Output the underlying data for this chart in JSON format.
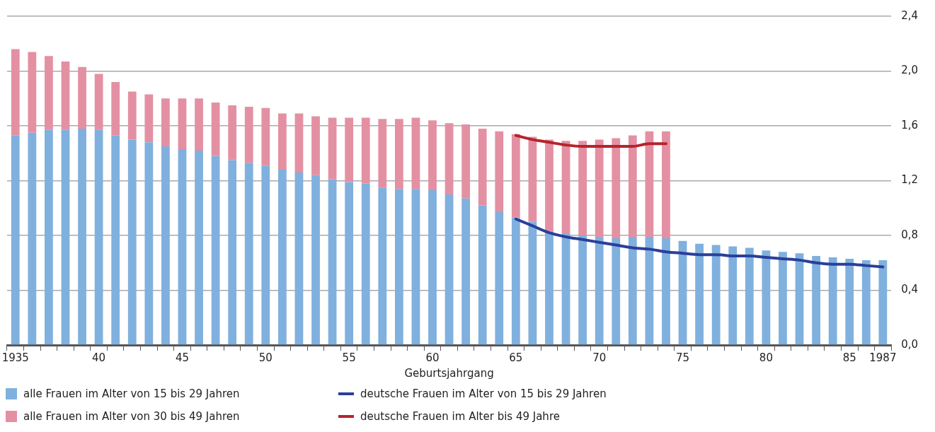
{
  "chart_data": {
    "type": "bar",
    "stacked": true,
    "xlabel": "Geburtsjahrgang",
    "categories": [
      "1935",
      null,
      null,
      null,
      null,
      "40",
      null,
      null,
      null,
      null,
      "45",
      null,
      null,
      null,
      null,
      "50",
      null,
      null,
      null,
      null,
      "55",
      null,
      null,
      null,
      null,
      "60",
      null,
      null,
      null,
      null,
      "65",
      null,
      null,
      null,
      null,
      "70",
      null,
      null,
      null,
      null,
      "75",
      null,
      null,
      null,
      null,
      "80",
      null,
      null,
      null,
      null,
      "85",
      null,
      "1987"
    ],
    "series": [
      {
        "name": "alle Frauen im Alter von 15 bis 29 Jahren",
        "color": "#80b0de",
        "values": [
          1.53,
          1.55,
          1.57,
          1.57,
          1.58,
          1.57,
          1.53,
          1.5,
          1.48,
          1.45,
          1.43,
          1.42,
          1.38,
          1.35,
          1.33,
          1.31,
          1.28,
          1.26,
          1.24,
          1.21,
          1.19,
          1.18,
          1.15,
          1.14,
          1.14,
          1.13,
          1.1,
          1.07,
          1.02,
          0.97,
          0.93,
          0.9,
          0.83,
          0.81,
          0.8,
          0.79,
          0.78,
          0.79,
          0.79,
          0.78,
          0.76,
          0.74,
          0.73,
          0.72,
          0.71,
          0.69,
          0.68,
          0.67,
          0.65,
          0.64,
          0.63,
          0.62,
          0.62
        ]
      },
      {
        "name": "deutsche Frauen im Alter von 15 bis 29 Jahren",
        "type": "line",
        "color": "#2a3f9a",
        "values": [
          null,
          null,
          null,
          null,
          null,
          null,
          null,
          null,
          null,
          null,
          null,
          null,
          null,
          null,
          null,
          null,
          null,
          null,
          null,
          null,
          null,
          null,
          null,
          null,
          null,
          null,
          null,
          null,
          null,
          null,
          0.92,
          0.87,
          0.82,
          0.79,
          0.77,
          0.75,
          0.73,
          0.71,
          0.7,
          0.68,
          0.67,
          0.66,
          0.66,
          0.65,
          0.65,
          0.64,
          0.63,
          0.62,
          0.6,
          0.59,
          0.59,
          0.58,
          0.57
        ]
      },
      {
        "name": "alle Frauen im Alter von 30 bis 49 Jahren",
        "color": "#e490a3",
        "values": [
          0.63,
          0.59,
          0.54,
          0.5,
          0.45,
          0.41,
          0.39,
          0.35,
          0.35,
          0.35,
          0.37,
          0.38,
          0.39,
          0.4,
          0.41,
          0.42,
          0.41,
          0.43,
          0.43,
          0.45,
          0.47,
          0.48,
          0.5,
          0.51,
          0.52,
          0.51,
          0.52,
          0.54,
          0.56,
          0.59,
          0.61,
          0.62,
          0.67,
          0.68,
          0.69,
          0.71,
          0.73,
          0.74,
          0.77,
          0.78,
          null,
          null,
          null,
          null,
          null,
          null,
          null,
          null,
          null,
          null,
          null,
          null,
          null
        ]
      },
      {
        "name": "deutsche Frauen im Alter bis 49 Jahre",
        "type": "line",
        "color": "#b5242c",
        "values": [
          null,
          null,
          null,
          null,
          null,
          null,
          null,
          null,
          null,
          null,
          null,
          null,
          null,
          null,
          null,
          null,
          null,
          null,
          null,
          null,
          null,
          null,
          null,
          null,
          null,
          null,
          null,
          null,
          null,
          null,
          1.53,
          1.5,
          1.48,
          1.46,
          1.45,
          1.45,
          1.45,
          1.45,
          1.47,
          1.47,
          null,
          null,
          null,
          null,
          null,
          null,
          null,
          null,
          null,
          null,
          null,
          null,
          null
        ]
      }
    ],
    "ylim": [
      0,
      2.4
    ],
    "yticks": [
      {
        "value": 0,
        "label": "0,0"
      },
      {
        "value": 0.4,
        "label": "0,4"
      },
      {
        "value": 0.8,
        "label": "0,8"
      },
      {
        "value": 1.2,
        "label": "1,2"
      },
      {
        "value": 1.6,
        "label": "1,6"
      },
      {
        "value": 2.0,
        "label": "2,0"
      },
      {
        "value": 2.4,
        "label": "2,4"
      }
    ],
    "grid": "y",
    "legend": "bottom",
    "marker": "none",
    "line_style": "solid"
  }
}
